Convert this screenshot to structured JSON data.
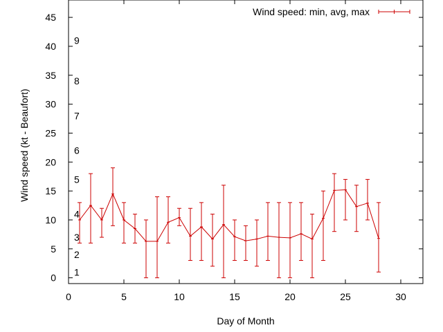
{
  "chart_data": {
    "type": "line",
    "xlabel": "Day of Month",
    "ylabel": "Wind speed (kt - Beaufort)",
    "xlim": [
      0,
      32
    ],
    "ylim": [
      -1,
      48
    ],
    "xticks": [
      0,
      5,
      10,
      15,
      20,
      25,
      30
    ],
    "yticks": [
      0,
      5,
      10,
      15,
      20,
      25,
      30,
      35,
      40,
      45
    ],
    "grid": false,
    "legend_position": "top-right",
    "beaufort_labels": [
      {
        "label": "1",
        "y": 1
      },
      {
        "label": "2",
        "y": 4
      },
      {
        "label": "3",
        "y": 7
      },
      {
        "label": "4",
        "y": 11
      },
      {
        "label": "5",
        "y": 17
      },
      {
        "label": "6",
        "y": 22
      },
      {
        "label": "7",
        "y": 28
      },
      {
        "label": "8",
        "y": 34
      },
      {
        "label": "9",
        "y": 41
      }
    ],
    "series": [
      {
        "name": "Wind speed: min, avg, max",
        "color": "#cc0000",
        "x": [
          1,
          2,
          3,
          4,
          5,
          6,
          7,
          8,
          9,
          10,
          11,
          12,
          13,
          14,
          15,
          16,
          17,
          18,
          19,
          20,
          21,
          22,
          23,
          24,
          25,
          26,
          27,
          28
        ],
        "avg": [
          10,
          12.5,
          10,
          14.5,
          10,
          8.5,
          6.3,
          6.3,
          9.6,
          10.4,
          7.2,
          8.8,
          6.7,
          9.2,
          7.1,
          6.4,
          6.7,
          7.2,
          7,
          6.9,
          7.6,
          6.7,
          10.3,
          15.1,
          15.2,
          12.3,
          12.9,
          6.8
        ],
        "min": [
          6,
          6,
          7,
          9,
          6,
          6,
          0,
          0,
          6,
          9,
          3,
          3,
          2,
          0,
          3,
          3,
          2,
          3,
          0,
          0,
          3,
          0,
          3,
          8,
          10,
          8,
          10,
          1
        ],
        "max": [
          13,
          18,
          12,
          19,
          13,
          11,
          10,
          14,
          14,
          12,
          12,
          13,
          11,
          16,
          10,
          9,
          10,
          13,
          13,
          13,
          13,
          11,
          15,
          18,
          17,
          16,
          17,
          13
        ]
      }
    ]
  }
}
